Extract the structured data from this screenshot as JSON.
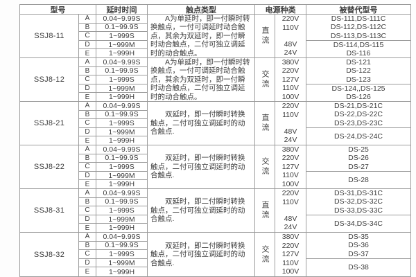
{
  "colors": {
    "border": "#9b9b9b",
    "text": "#3c3c3c",
    "background": "#ffffff"
  },
  "table": {
    "headers": {
      "model": "型号",
      "delay": "延时时间",
      "contact": "触点类型",
      "power": "电源种类",
      "replaced": "被替代型号"
    },
    "delay_rows": [
      {
        "letter": "A",
        "range": "0.04~9.99S"
      },
      {
        "letter": "B",
        "range": "0.1~99.9S"
      },
      {
        "letter": "C",
        "range": "1~999S"
      },
      {
        "letter": "D",
        "range": "1~999M"
      },
      {
        "letter": "E",
        "range": "1~999H"
      }
    ],
    "groups": [
      {
        "model": "SSJ8-11",
        "contact": "A为单延时，即一付瞬时转换触点，一付可调延时动合触点，其余为双延时，即一付瞬时动合触点，二付可独立调延时的动合触点。",
        "power_type": "直流",
        "voltages": [
          "220V",
          "110V",
          "",
          "48V",
          "24V"
        ],
        "replaced_top": [
          "DS-111,DS-111C",
          "DS-112,DS-112C",
          "DS-113,DS-113C"
        ],
        "replaced_bottom": [
          "DS-114,DS-115",
          "DS-116"
        ]
      },
      {
        "model": "SSJ8-12",
        "contact": "A为单延时，即一付瞬时转换触点，一付可调延时动合触点，其余为双延时，即一付瞬时动合触点，二付可独立调延时的动合触点。",
        "power_type": "交流",
        "voltages": [
          "380V",
          "220V",
          "127V",
          "110V",
          "100V"
        ],
        "replaced_top": [
          "DS-121",
          "DS-122",
          "DS-123"
        ],
        "replaced_bottom": [
          "DS-124,,DS-125",
          "DS-126"
        ]
      },
      {
        "model": "SSJ8-21",
        "contact": "双延时，即一付瞬时转换触点，二付可独立调延时的动合触点.",
        "power_type": "直流",
        "voltages": [
          "220V",
          "110V",
          "",
          "48V",
          "24V"
        ],
        "replaced_top": [
          "DS-21,DS-21C",
          "DS-22,DS-22C",
          "DS-23,DS-23C"
        ],
        "replaced_bottom": [
          "DS-24,DS-24C"
        ]
      },
      {
        "model": "SSJ8-22",
        "contact": "双延时，即一付瞬时转换触点，二付可独立调延时的动合触点.",
        "power_type": "交流",
        "voltages": [
          "380V",
          "220V",
          "127V",
          "110V",
          "100V"
        ],
        "replaced_top": [
          "DS-25",
          "DS-26",
          "DS-27"
        ],
        "replaced_bottom": [
          "DS-28"
        ]
      },
      {
        "model": "SSJ8-31",
        "contact": "双延时，即二付瞬时转换触点，二付可独立调延时的动合触点.",
        "power_type": "直流",
        "voltages": [
          "220V",
          "110V",
          "",
          "48V",
          "24V"
        ],
        "replaced_top": [
          "DS-31,DS-31C",
          "DS-32,DS-32C",
          "DS-33,DS-33C"
        ],
        "replaced_bottom": [
          "DS-34,DS-34C"
        ]
      },
      {
        "model": "SSJ8-32",
        "contact": "双延时，即二付瞬时转换触点，二付可独立调延时的动合触点.",
        "power_type": "交流",
        "voltages": [
          "380V",
          "220V",
          "127V",
          "110V",
          "100V"
        ],
        "replaced_top": [
          "DS-35",
          "DS-36",
          "DS-37"
        ],
        "replaced_bottom": [
          "DS-38"
        ]
      }
    ]
  }
}
